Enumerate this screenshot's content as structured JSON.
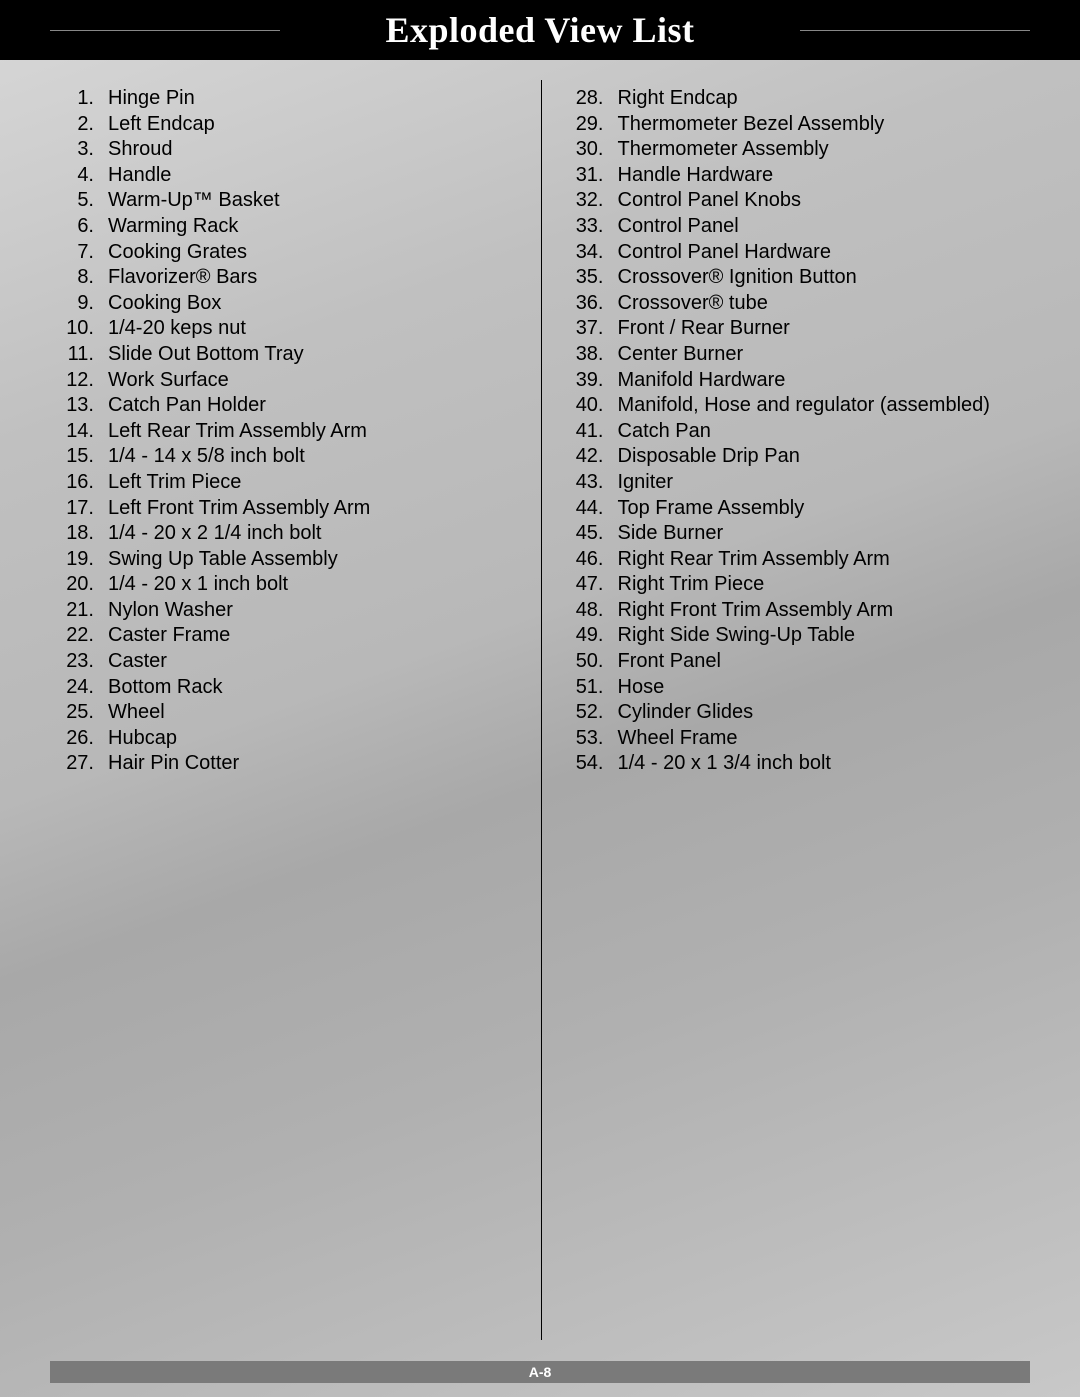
{
  "header": {
    "title": "Exploded View List"
  },
  "footer": {
    "page": "A-8"
  },
  "columns": {
    "left": [
      {
        "n": "1.",
        "t": "Hinge Pin"
      },
      {
        "n": "2.",
        "t": "Left Endcap"
      },
      {
        "n": "3.",
        "t": "Shroud"
      },
      {
        "n": "4.",
        "t": "Handle"
      },
      {
        "n": "5.",
        "t": "Warm-Up™ Basket"
      },
      {
        "n": "6.",
        "t": "Warming Rack"
      },
      {
        "n": "7.",
        "t": "Cooking Grates"
      },
      {
        "n": "8.",
        "t": "Flavorizer® Bars"
      },
      {
        "n": "9.",
        "t": "Cooking Box"
      },
      {
        "n": "10.",
        "t": "1/4-20 keps nut"
      },
      {
        "n": "11.",
        "t": "Slide Out Bottom Tray"
      },
      {
        "n": "12.",
        "t": "Work Surface"
      },
      {
        "n": "13.",
        "t": "Catch Pan Holder"
      },
      {
        "n": "14.",
        "t": "Left Rear Trim Assembly Arm"
      },
      {
        "n": "15.",
        "t": "1/4 - 14 x 5/8 inch bolt"
      },
      {
        "n": "16.",
        "t": "Left Trim Piece"
      },
      {
        "n": "17.",
        "t": "Left Front Trim Assembly Arm"
      },
      {
        "n": "18.",
        "t": "1/4 - 20 x 2 1/4 inch bolt"
      },
      {
        "n": "19.",
        "t": "Swing Up Table Assembly"
      },
      {
        "n": "20.",
        "t": "1/4 - 20 x 1 inch bolt"
      },
      {
        "n": "21.",
        "t": "Nylon Washer"
      },
      {
        "n": "22.",
        "t": "Caster Frame"
      },
      {
        "n": "23.",
        "t": "Caster"
      },
      {
        "n": "24.",
        "t": "Bottom Rack"
      },
      {
        "n": "25.",
        "t": "Wheel"
      },
      {
        "n": "26.",
        "t": "Hubcap"
      },
      {
        "n": "27.",
        "t": "Hair Pin Cotter"
      }
    ],
    "right": [
      {
        "n": "28.",
        "t": "Right Endcap"
      },
      {
        "n": "29.",
        "t": "Thermometer Bezel Assembly"
      },
      {
        "n": "30.",
        "t": "Thermometer Assembly"
      },
      {
        "n": "31.",
        "t": "Handle Hardware"
      },
      {
        "n": "32.",
        "t": "Control Panel Knobs"
      },
      {
        "n": "33.",
        "t": "Control Panel"
      },
      {
        "n": "34.",
        "t": "Control Panel Hardware"
      },
      {
        "n": "35.",
        "t": "Crossover® Ignition Button"
      },
      {
        "n": "36.",
        "t": "Crossover® tube"
      },
      {
        "n": "37.",
        "t": "Front / Rear Burner"
      },
      {
        "n": "38.",
        "t": "Center Burner"
      },
      {
        "n": "39.",
        "t": "Manifold Hardware"
      },
      {
        "n": "40.",
        "t": "Manifold, Hose and regulator (assembled)"
      },
      {
        "n": "41.",
        "t": "Catch Pan"
      },
      {
        "n": "42.",
        "t": "Disposable Drip Pan"
      },
      {
        "n": "43.",
        "t": "Igniter"
      },
      {
        "n": "44.",
        "t": "Top Frame Assembly"
      },
      {
        "n": "45.",
        "t": "Side Burner"
      },
      {
        "n": "46.",
        "t": "Right Rear Trim Assembly Arm"
      },
      {
        "n": "47.",
        "t": "Right Trim Piece"
      },
      {
        "n": "48.",
        "t": "Right Front Trim Assembly Arm"
      },
      {
        "n": "49.",
        "t": "Right Side Swing-Up Table"
      },
      {
        "n": "50.",
        "t": "Front Panel"
      },
      {
        "n": "51.",
        "t": "Hose"
      },
      {
        "n": "52.",
        "t": "Cylinder Glides"
      },
      {
        "n": "53.",
        "t": "Wheel Frame"
      },
      {
        "n": "54.",
        "t": "1/4 - 20 x 1 3/4 inch bolt"
      }
    ]
  }
}
